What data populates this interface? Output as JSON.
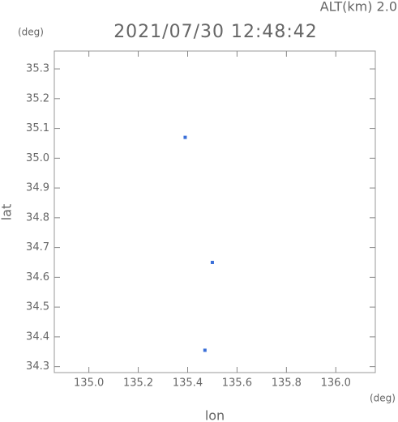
{
  "chart_data": {
    "type": "scatter",
    "title": "2021/07/30 12:48:42",
    "annotation": "ALT(km) 2.0",
    "y_unit": "(deg)",
    "x_unit": "(deg)",
    "x_label": "lon",
    "y_label": "lat",
    "series": [
      {
        "color": "#3a6fd8",
        "x": [
          135.39,
          135.5,
          135.47
        ],
        "values": [
          35.07,
          34.65,
          34.355
        ]
      }
    ],
    "xlim": [
      134.86,
      136.16
    ],
    "ylim": [
      34.28,
      35.36
    ],
    "xticks": [
      {
        "value": 135,
        "label": "135.0"
      },
      135.2,
      135.4,
      135.6,
      135.8,
      {
        "value": 136,
        "label": "136.0"
      }
    ],
    "yticks": [
      34.3,
      34.4,
      34.5,
      34.6,
      34.7,
      34.8,
      34.9,
      {
        "value": 35,
        "label": "35.0"
      },
      35.1,
      35.2,
      35.3
    ]
  }
}
